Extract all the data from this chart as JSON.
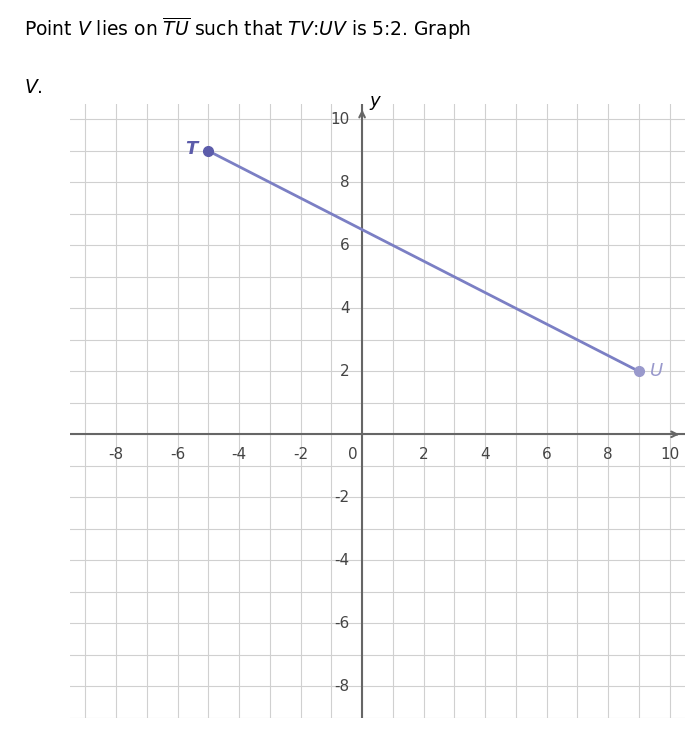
{
  "T": [
    -5,
    9
  ],
  "U": [
    9,
    2
  ],
  "line_color": "#7B7FC4",
  "point_T_color": "#5C5CAA",
  "point_U_color": "#9999CC",
  "xlim": [
    -9.5,
    10.5
  ],
  "ylim": [
    -9,
    10.5
  ],
  "grid_color": "#D0D0D0",
  "axis_color": "#666666",
  "bg_color": "#FFFFFF",
  "point_size": 7,
  "label_fontsize": 13,
  "tick_fontsize": 11,
  "axis_lw": 1.5
}
